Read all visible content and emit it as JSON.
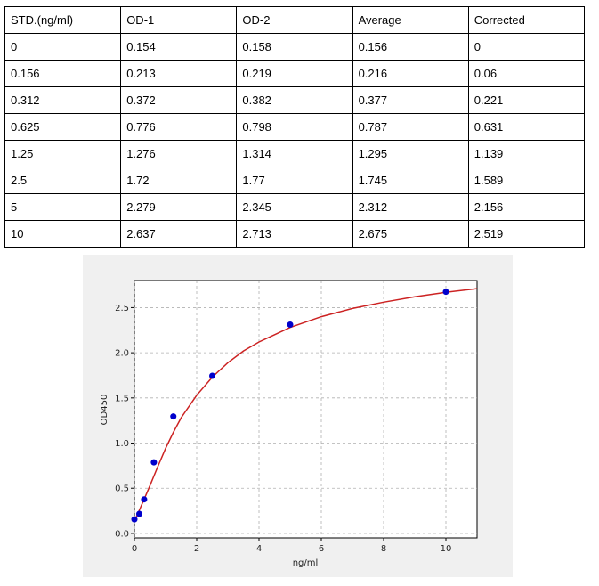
{
  "table": {
    "headers": [
      "STD.(ng/ml)",
      "OD-1",
      "OD-2",
      "Average",
      "Corrected"
    ],
    "rows": [
      [
        "0",
        "0.154",
        "0.158",
        "0.156",
        "0"
      ],
      [
        "0.156",
        "0.213",
        "0.219",
        "0.216",
        "0.06"
      ],
      [
        "0.312",
        "0.372",
        "0.382",
        "0.377",
        "0.221"
      ],
      [
        "0.625",
        "0.776",
        "0.798",
        "0.787",
        "0.631"
      ],
      [
        "1.25",
        "1.276",
        "1.314",
        "1.295",
        "1.139"
      ],
      [
        "2.5",
        "1.72",
        "1.77",
        "1.745",
        "1.589"
      ],
      [
        "5",
        "2.279",
        "2.345",
        "2.312",
        "2.156"
      ],
      [
        "10",
        "2.637",
        "2.713",
        "2.675",
        "2.519"
      ]
    ]
  },
  "chart_data": {
    "type": "scatter",
    "title": "",
    "xlabel": "ng/ml",
    "ylabel": "OD450",
    "xlim": [
      0,
      11
    ],
    "ylim": [
      -0.05,
      2.8
    ],
    "xticks": [
      0,
      2,
      4,
      6,
      8,
      10
    ],
    "yticks": [
      0.0,
      0.5,
      1.0,
      1.5,
      2.0,
      2.5
    ],
    "xtick_labels": [
      "0",
      "2",
      "4",
      "6",
      "8",
      "10"
    ],
    "ytick_labels": [
      "0.0",
      "0.5",
      "1.0",
      "1.5",
      "2.0",
      "2.5"
    ],
    "grid": true,
    "series": [
      {
        "type": "scatter",
        "x": [
          0,
          0.156,
          0.312,
          0.625,
          1.25,
          2.5,
          5,
          10
        ],
        "y": [
          0.156,
          0.216,
          0.377,
          0.787,
          1.295,
          1.745,
          2.312,
          2.675
        ],
        "color": "#0000cc"
      },
      {
        "type": "line",
        "x": [
          0,
          0.1,
          0.2,
          0.35,
          0.5,
          0.75,
          1.0,
          1.25,
          1.5,
          2.0,
          2.5,
          3.0,
          3.5,
          4.0,
          5.0,
          6.0,
          7.0,
          8.0,
          9.0,
          10.0,
          11.0
        ],
        "y": [
          0.14,
          0.21,
          0.29,
          0.41,
          0.53,
          0.74,
          0.94,
          1.12,
          1.28,
          1.53,
          1.73,
          1.89,
          2.02,
          2.12,
          2.28,
          2.4,
          2.49,
          2.56,
          2.62,
          2.67,
          2.71
        ],
        "color": "#cc2222"
      }
    ]
  }
}
